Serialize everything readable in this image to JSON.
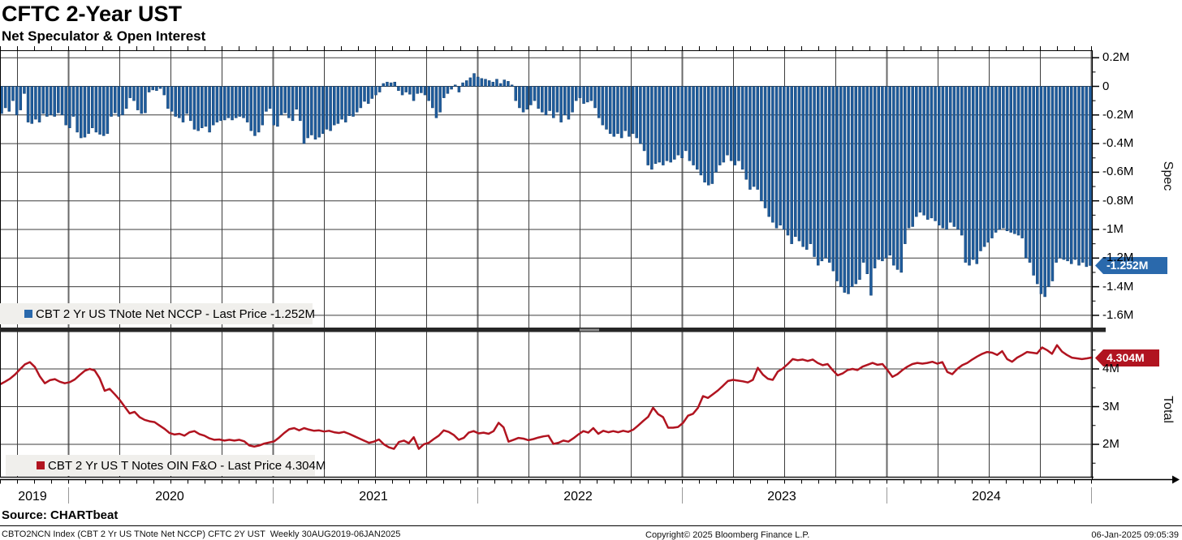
{
  "header": {
    "title": "CFTC 2-Year UST",
    "subtitle": "Net Speculator & Open Interest"
  },
  "panels": [
    {
      "id": "spec",
      "axis_title": "Spec",
      "legend_label": "CBT 2 Yr US TNote Net NCCP - Last Price -1.252M",
      "price_label": "-1.252M",
      "last_value": -1.252,
      "yticks": [
        {
          "label": "0.2M",
          "value": 0.2
        },
        {
          "label": "0",
          "value": 0
        },
        {
          "label": "-0.2M",
          "value": -0.2
        },
        {
          "label": "-0.4M",
          "value": -0.4
        },
        {
          "label": "-0.6M",
          "value": -0.6
        },
        {
          "label": "-0.8M",
          "value": -0.8
        },
        {
          "label": "-1M",
          "value": -1
        },
        {
          "label": "-1.2M",
          "value": -1.2
        },
        {
          "label": "-1.4M",
          "value": -1.4
        },
        {
          "label": "-1.6M",
          "value": -1.6
        }
      ]
    },
    {
      "id": "total",
      "axis_title": "Total",
      "legend_label": "CBT 2 Yr US T Notes OIN F&O - Last Price 4.304M",
      "price_label": "4.304M",
      "last_value": 4.304,
      "yticks": [
        {
          "label": "4M",
          "value": 4
        },
        {
          "label": "3M",
          "value": 3
        },
        {
          "label": "2M",
          "value": 2
        }
      ]
    }
  ],
  "x_axis": {
    "year_labels": [
      "2019",
      "2020",
      "2021",
      "2022",
      "2023",
      "2024"
    ],
    "year_label_x": [
      40,
      209,
      460,
      712,
      963,
      1215
    ],
    "year_boundary_x": [
      84,
      336,
      588,
      840,
      1092,
      1344
    ]
  },
  "footer": {
    "source": "Source: CHARTbeat",
    "left": "CBTO2NCN Index (CBT 2 Yr US TNote Net NCCP) CFTC 2Y UST  Weekly 30AUG2019-06JAN2025",
    "copyright": "Copyright© 2025 Bloomberg Finance L.P.",
    "datetime": "06-Jan-2025 09:05:39"
  },
  "colors": {
    "bar": "#1f5c9c",
    "bar_stroke": "#123f6f",
    "line": "#b11420",
    "spec_label_bg": "#2a69ac",
    "total_label_bg": "#b11420",
    "legend_bg": "#f0efec",
    "grid": "#3c3c3c",
    "year_grid": "#6a6a6a",
    "axis": "#000000",
    "year_tick": "#999999",
    "separator": "#262626",
    "grip": "#8f8f8f"
  },
  "chart_data": [
    {
      "type": "bar",
      "name": "CBT 2 Yr US TNote Net NCCP",
      "units": "M contracts",
      "frequency": "weekly",
      "x_start": "30AUG2019",
      "x_end": "06JAN2025",
      "ylabel": "Spec",
      "ylim": [
        -1.69,
        0.25
      ],
      "grid": true,
      "last": -1.252,
      "values": [
        -0.19,
        -0.15,
        -0.175,
        -0.1,
        -0.2,
        -0.165,
        -0.05,
        -0.25,
        -0.26,
        -0.23,
        -0.25,
        -0.19,
        -0.21,
        -0.2,
        -0.21,
        -0.185,
        -0.2,
        -0.27,
        -0.29,
        -0.21,
        -0.32,
        -0.36,
        -0.355,
        -0.33,
        -0.29,
        -0.32,
        -0.335,
        -0.345,
        -0.33,
        -0.21,
        -0.185,
        -0.21,
        -0.2,
        -0.155,
        -0.08,
        -0.1,
        -0.165,
        -0.19,
        -0.185,
        -0.04,
        -0.025,
        -0.03,
        -0.015,
        -0.06,
        -0.155,
        -0.175,
        -0.21,
        -0.22,
        -0.25,
        -0.19,
        -0.24,
        -0.3,
        -0.31,
        -0.29,
        -0.28,
        -0.32,
        -0.27,
        -0.25,
        -0.24,
        -0.235,
        -0.22,
        -0.235,
        -0.22,
        -0.21,
        -0.22,
        -0.25,
        -0.31,
        -0.345,
        -0.32,
        -0.27,
        -0.175,
        -0.155,
        -0.27,
        -0.28,
        -0.2,
        -0.185,
        -0.22,
        -0.24,
        -0.16,
        -0.24,
        -0.4,
        -0.36,
        -0.34,
        -0.37,
        -0.355,
        -0.33,
        -0.3,
        -0.31,
        -0.27,
        -0.26,
        -0.23,
        -0.25,
        -0.205,
        -0.21,
        -0.18,
        -0.15,
        -0.105,
        -0.12,
        -0.085,
        -0.06,
        -0.04,
        0.02,
        0.03,
        0.025,
        0.03,
        -0.03,
        -0.06,
        -0.04,
        -0.055,
        -0.1,
        -0.05,
        -0.045,
        -0.06,
        -0.1,
        -0.15,
        -0.22,
        -0.18,
        -0.08,
        -0.05,
        -0.02,
        0.01,
        -0.04,
        0.025,
        0.04,
        0.06,
        0.09,
        0.065,
        0.055,
        0.05,
        0.04,
        0.03,
        0.05,
        0.02,
        0.045,
        0.035,
        0.01,
        -0.1,
        -0.15,
        -0.18,
        -0.16,
        -0.13,
        -0.1,
        -0.155,
        -0.18,
        -0.2,
        -0.17,
        -0.22,
        -0.18,
        -0.25,
        -0.2,
        -0.23,
        -0.18,
        -0.1,
        -0.08,
        -0.12,
        -0.11,
        -0.1,
        -0.15,
        -0.22,
        -0.27,
        -0.3,
        -0.33,
        -0.35,
        -0.33,
        -0.36,
        -0.31,
        -0.35,
        -0.33,
        -0.36,
        -0.4,
        -0.45,
        -0.55,
        -0.58,
        -0.54,
        -0.53,
        -0.55,
        -0.52,
        -0.53,
        -0.51,
        -0.48,
        -0.5,
        -0.45,
        -0.52,
        -0.55,
        -0.58,
        -0.62,
        -0.67,
        -0.69,
        -0.68,
        -0.6,
        -0.55,
        -0.53,
        -0.48,
        -0.52,
        -0.55,
        -0.52,
        -0.58,
        -0.65,
        -0.72,
        -0.7,
        -0.72,
        -0.8,
        -0.85,
        -0.91,
        -0.95,
        -0.99,
        -0.97,
        -1.0,
        -1.04,
        -1.1,
        -1.05,
        -1.08,
        -1.12,
        -1.14,
        -1.1,
        -1.19,
        -1.25,
        -1.22,
        -1.2,
        -1.23,
        -1.29,
        -1.36,
        -1.4,
        -1.44,
        -1.45,
        -1.4,
        -1.38,
        -1.35,
        -1.23,
        -1.31,
        -1.46,
        -1.27,
        -1.21,
        -1.22,
        -1.2,
        -1.18,
        -1.25,
        -1.28,
        -1.3,
        -1.1,
        -0.99,
        -0.98,
        -0.91,
        -0.88,
        -0.9,
        -0.93,
        -0.92,
        -0.94,
        -0.97,
        -0.99,
        -1.0,
        -0.95,
        -0.98,
        -1.0,
        -1.04,
        -1.23,
        -1.25,
        -1.21,
        -1.24,
        -1.15,
        -1.12,
        -1.09,
        -1.06,
        -1.02,
        -1.0,
        -0.99,
        -1.01,
        -1.02,
        -1.03,
        -1.04,
        -1.06,
        -1.2,
        -1.23,
        -1.32,
        -1.38,
        -1.45,
        -1.47,
        -1.4,
        -1.36,
        -1.23,
        -1.2,
        -1.21,
        -1.22,
        -1.24,
        -1.21,
        -1.25,
        -1.23,
        -1.26,
        -1.252
      ]
    },
    {
      "type": "line",
      "name": "CBT 2 Yr US T Notes OIN F&O",
      "units": "M contracts",
      "frequency": "weekly",
      "x_start": "30AUG2019",
      "x_end": "06JAN2025",
      "ylabel": "Total",
      "ylim": [
        1.1,
        5.0
      ],
      "grid": true,
      "last": 4.304,
      "values": [
        3.59,
        3.66,
        3.74,
        3.85,
        3.99,
        4.12,
        4.18,
        4.05,
        3.8,
        3.62,
        3.7,
        3.73,
        3.66,
        3.62,
        3.65,
        3.72,
        3.84,
        3.95,
        4.0,
        3.96,
        3.75,
        3.42,
        3.47,
        3.33,
        3.18,
        3.0,
        2.82,
        2.86,
        2.72,
        2.65,
        2.61,
        2.59,
        2.5,
        2.41,
        2.3,
        2.26,
        2.28,
        2.23,
        2.32,
        2.35,
        2.27,
        2.23,
        2.16,
        2.12,
        2.13,
        2.1,
        2.12,
        2.1,
        2.12,
        2.08,
        1.97,
        1.94,
        1.97,
        2.02,
        2.05,
        2.08,
        2.18,
        2.3,
        2.4,
        2.43,
        2.37,
        2.43,
        2.39,
        2.36,
        2.37,
        2.34,
        2.36,
        2.32,
        2.3,
        2.33,
        2.28,
        2.22,
        2.16,
        2.1,
        2.04,
        2.07,
        2.13,
        2.0,
        1.92,
        1.88,
        2.06,
        2.1,
        2.03,
        2.19,
        1.88,
        2.0,
        2.04,
        2.14,
        2.23,
        2.37,
        2.33,
        2.25,
        2.12,
        2.17,
        2.31,
        2.35,
        2.29,
        2.31,
        2.28,
        2.35,
        2.57,
        2.45,
        2.07,
        2.12,
        2.17,
        2.15,
        2.11,
        2.14,
        2.18,
        2.21,
        2.23,
        2.01,
        2.04,
        2.1,
        2.07,
        2.16,
        2.26,
        2.35,
        2.31,
        2.43,
        2.28,
        2.36,
        2.32,
        2.35,
        2.32,
        2.36,
        2.33,
        2.39,
        2.5,
        2.62,
        2.73,
        2.97,
        2.8,
        2.72,
        2.44,
        2.44,
        2.46,
        2.57,
        2.76,
        2.81,
        2.97,
        3.28,
        3.23,
        3.33,
        3.43,
        3.55,
        3.68,
        3.71,
        3.69,
        3.67,
        3.64,
        3.71,
        4.03,
        3.85,
        3.74,
        3.71,
        3.93,
        4.01,
        4.13,
        4.26,
        4.23,
        4.25,
        4.21,
        4.25,
        4.16,
        4.1,
        4.13,
        3.97,
        3.83,
        3.88,
        3.97,
        4.0,
        3.97,
        4.06,
        4.11,
        4.16,
        4.11,
        4.13,
        3.97,
        3.79,
        3.86,
        3.97,
        4.06,
        4.13,
        4.16,
        4.14,
        4.16,
        4.19,
        4.14,
        4.18,
        3.92,
        3.86,
        4.0,
        4.1,
        4.16,
        4.25,
        4.33,
        4.4,
        4.45,
        4.43,
        4.37,
        4.47,
        4.26,
        4.19,
        4.3,
        4.37,
        4.45,
        4.43,
        4.41,
        4.57,
        4.5,
        4.4,
        4.63,
        4.46,
        4.37,
        4.3,
        4.28,
        4.26,
        4.28,
        4.304
      ]
    }
  ]
}
